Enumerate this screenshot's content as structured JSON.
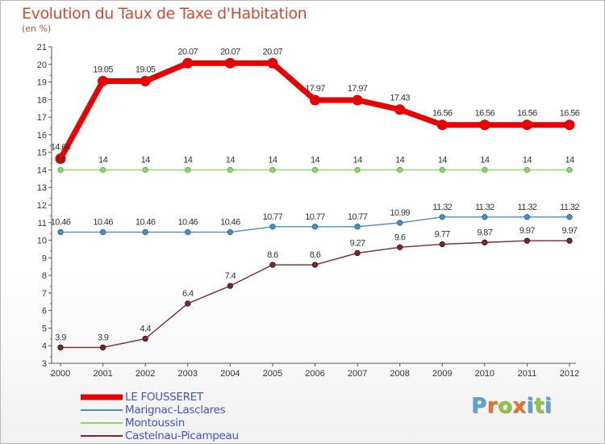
{
  "title": "Evolution du Taux de Taxe d'Habitation",
  "subtitle": "(en %)",
  "brand": {
    "text": "Proxiti",
    "letters": [
      "P",
      "r",
      "o",
      "x",
      "i",
      "t",
      "i"
    ],
    "colors": [
      "#5aa1d8",
      "#e8702a",
      "#8dc63f",
      "#e8702a",
      "#5aa1d8",
      "#8dc63f",
      "#5aa1d8"
    ]
  },
  "chart_data": {
    "type": "line",
    "title": "Evolution du Taux de Taxe d'Habitation",
    "ylabel": "(en %)",
    "xlabel": "",
    "ylim": [
      3,
      21
    ],
    "grid": false,
    "legend_position": "bottom-left",
    "categories": [
      "2000",
      "2001",
      "2002",
      "2003",
      "2004",
      "2005",
      "2006",
      "2007",
      "2008",
      "2009",
      "2010",
      "2011",
      "2012"
    ],
    "yticks": [
      "3",
      "4",
      "5",
      "6",
      "7",
      "8",
      "9",
      "10",
      "11",
      "12",
      "13",
      "14",
      "15",
      "16",
      "17",
      "18",
      "19",
      "20",
      "21"
    ],
    "series": [
      {
        "name": "LE FOUSSERET",
        "color": "#e80000",
        "values": [
          14.64,
          19.05,
          19.05,
          20.07,
          20.07,
          20.07,
          17.97,
          17.97,
          17.43,
          16.56,
          16.56,
          16.56,
          16.56
        ],
        "labels": [
          "14.64",
          "19.05",
          "19.05",
          "20.07",
          "20.07",
          "20.07",
          "17.97",
          "17.97",
          "17.43",
          "16.56",
          "16.56",
          "16.56",
          "16.56"
        ]
      },
      {
        "name": "Marignac-Lasclares",
        "color": "#4a8fc7",
        "values": [
          10.46,
          10.46,
          10.46,
          10.46,
          10.46,
          10.77,
          10.77,
          10.77,
          10.99,
          11.32,
          11.32,
          11.32,
          11.32
        ],
        "labels": [
          "10.46",
          "10.46",
          "10.46",
          "10.46",
          "10.46",
          "10.77",
          "10.77",
          "10.77",
          "10.99",
          "11.32",
          "11.32",
          "11.32",
          "11.32"
        ]
      },
      {
        "name": "Montoussin",
        "color": "#8fd36a",
        "values": [
          14,
          14,
          14,
          14,
          14,
          14,
          14,
          14,
          14,
          14,
          14,
          14,
          14
        ],
        "labels": [
          "14",
          "14",
          "14",
          "14",
          "14",
          "14",
          "14",
          "14",
          "14",
          "14",
          "14",
          "14",
          "14"
        ]
      },
      {
        "name": "Castelnau-Picampeau",
        "color": "#7a2a2a",
        "values": [
          3.9,
          3.9,
          4.4,
          6.4,
          7.4,
          8.6,
          8.6,
          9.27,
          9.6,
          9.77,
          9.87,
          9.97,
          9.97
        ],
        "labels": [
          "3.9",
          "3.9",
          "4.4",
          "6.4",
          "7.4",
          "8.6",
          "8.6",
          "9.27",
          "9.6",
          "9.77",
          "9.87",
          "9.97",
          "9.97"
        ]
      }
    ]
  }
}
